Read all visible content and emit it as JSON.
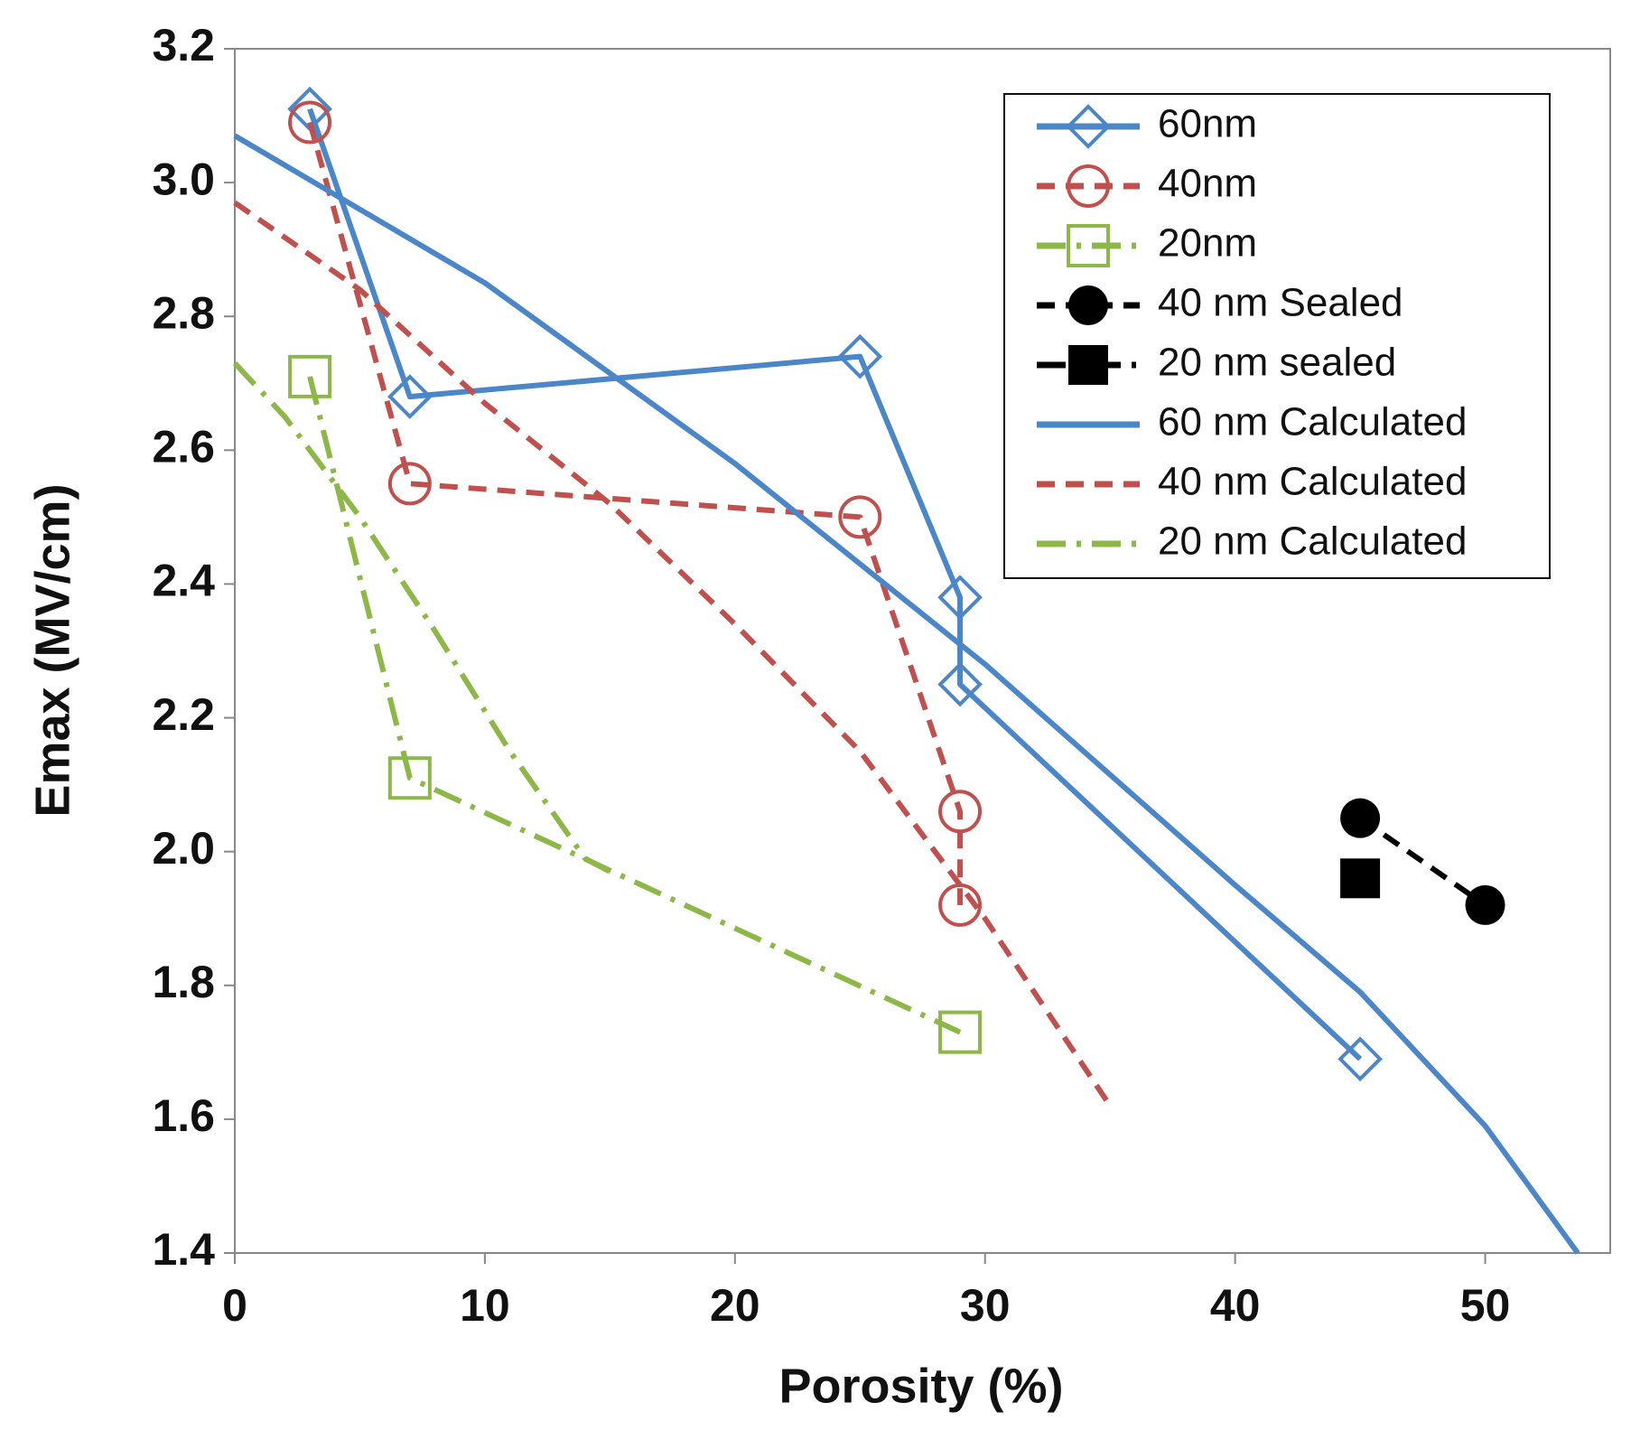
{
  "chart_data": {
    "type": "line",
    "x_label": "Porosity (%)",
    "y_label": "Emax (MV/cm)",
    "xlim": [
      0,
      55
    ],
    "xticks": [
      0,
      10,
      20,
      30,
      40,
      50
    ],
    "ylim": [
      1.4,
      3.2
    ],
    "yticks": [
      1.4,
      1.6,
      1.8,
      {
        "value": 2,
        "label": "2.0"
      },
      2.2,
      2.4,
      2.6,
      2.8,
      {
        "value": 3,
        "label": "3.0"
      },
      3.2
    ],
    "legend": "upper right",
    "series": [
      {
        "name": "60nm",
        "color": "#4a86c8",
        "dash": "solid",
        "marker": "diamond",
        "x": [
          3,
          7,
          25,
          29,
          29,
          45
        ],
        "values": [
          3.11,
          2.68,
          2.74,
          2.38,
          2.25,
          1.69
        ]
      },
      {
        "name": "40nm",
        "color": "#c0504d",
        "dash": "dash",
        "marker": "circle",
        "x": [
          3,
          7,
          25,
          29,
          29
        ],
        "values": [
          3.09,
          2.55,
          2.5,
          2.06,
          1.92
        ]
      },
      {
        "name": "20nm",
        "color": "#8db848",
        "dash": "dashdot",
        "marker": "square",
        "x": [
          3,
          7,
          29
        ],
        "values": [
          2.71,
          2.11,
          1.73
        ]
      },
      {
        "name": "40 nm Sealed",
        "color": "#000000",
        "dash": "dash",
        "marker": "filled-circle",
        "x": [
          45,
          50
        ],
        "values": [
          2.05,
          1.92
        ]
      },
      {
        "name": "20 nm sealed",
        "color": "#000000",
        "dash": "dashdot",
        "marker": "filled-square",
        "x": [
          45
        ],
        "values": [
          1.96
        ]
      },
      {
        "name": "60 nm Calculated",
        "color": "#4a86c8",
        "dash": "solid",
        "marker": "none",
        "x": [
          0,
          10,
          20,
          30,
          40,
          45,
          50,
          53.7
        ],
        "values": [
          3.07,
          2.85,
          2.58,
          2.28,
          1.95,
          1.79,
          1.59,
          1.4
        ]
      },
      {
        "name": "40 nm Calculated",
        "color": "#c0504d",
        "dash": "dash",
        "marker": "none",
        "x": [
          0,
          5,
          10,
          15,
          20,
          25,
          30,
          35
        ],
        "values": [
          2.97,
          2.84,
          2.67,
          2.52,
          2.34,
          2.15,
          1.9,
          1.62
        ]
      },
      {
        "name": "20 nm Calculated",
        "color": "#8db848",
        "dash": "dashdot",
        "marker": "none",
        "x": [
          0,
          2,
          5,
          8,
          11,
          14,
          15
        ],
        "values": [
          2.73,
          2.65,
          2.5,
          2.33,
          2.15,
          1.99,
          1.97
        ]
      }
    ]
  }
}
